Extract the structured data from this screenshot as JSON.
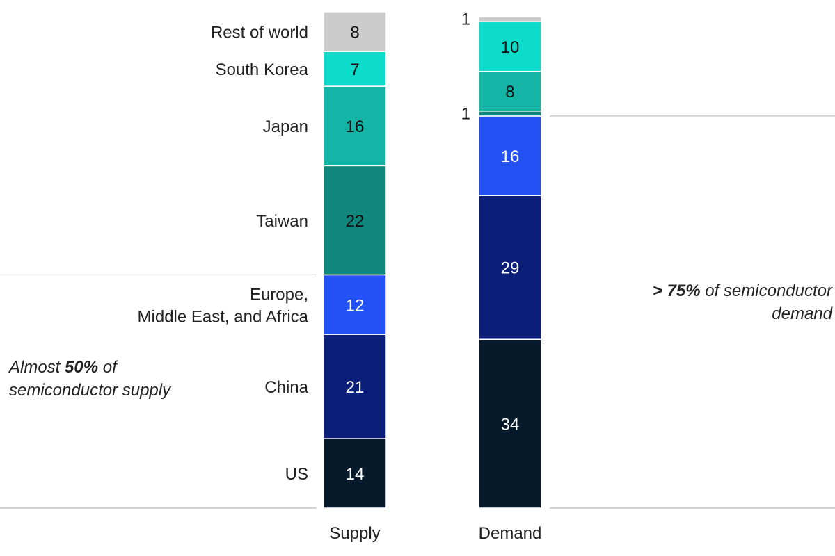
{
  "chart_data": {
    "type": "bar",
    "stacked": true,
    "unit": "percent",
    "categories": [
      "Supply",
      "Demand"
    ],
    "series": [
      {
        "name": "US",
        "values": [
          14,
          34
        ],
        "color": "#061a2b"
      },
      {
        "name": "China",
        "values": [
          21,
          29
        ],
        "color": "#0b1f7a"
      },
      {
        "name": "Europe, Middle East, and Africa",
        "values": [
          12,
          16
        ],
        "color": "#2351f5"
      },
      {
        "name": "Taiwan",
        "values": [
          22,
          1
        ],
        "color": "#10877d"
      },
      {
        "name": "Japan",
        "values": [
          16,
          8
        ],
        "color": "#14b5a6"
      },
      {
        "name": "South Korea",
        "values": [
          7,
          10
        ],
        "color": "#0ddcca"
      },
      {
        "name": "Rest of world",
        "values": [
          8,
          1
        ],
        "color": "#cccccc"
      }
    ],
    "value_label_colors": {
      "US": "#ffffff",
      "China": "#ffffff",
      "Europe, Middle East, and Africa": "#ffffff",
      "Taiwan": "#111111",
      "Japan": "#111111",
      "South Korea": "#111111",
      "Rest of world": "#111111"
    },
    "outside_value_labels": [
      "Taiwan",
      "Rest of world"
    ],
    "annotations": {
      "supply": {
        "prefix": "Almost ",
        "bold": "50%",
        "rest": " of semiconductor supply",
        "covers_series": [
          "US",
          "China",
          "Europe, Middle East, and Africa"
        ]
      },
      "demand": {
        "prefix": "",
        "bold": "> 75%",
        "rest": " of semiconductor demand",
        "covers_series": [
          "US",
          "China",
          "Europe, Middle East, and Africa"
        ]
      }
    },
    "guide_line_color": "#bbbbbb"
  }
}
